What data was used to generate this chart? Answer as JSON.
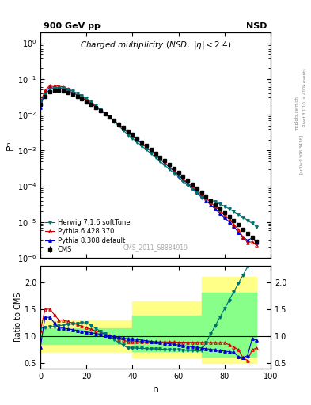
{
  "title": "Charged multiplicity",
  "title_detail": "(NSD, |η| < 2.4)",
  "top_left": "900 GeV pp",
  "top_right": "NSD",
  "right_label": "Rivet 3.1.10, ≥ 400k events",
  "arxiv_label": "[arXiv:1306.3436]",
  "mcplots_label": "mcplots.cern.ch",
  "watermark": "CMS_2011_S8884919",
  "ylabel_main": "Pⁿ",
  "ylabel_ratio": "Ratio to CMS",
  "xlabel": "n",
  "xlim": [
    0,
    100
  ],
  "ylim_ratio": [
    0.4,
    2.3
  ],
  "colors": {
    "cms": "#000000",
    "herwig": "#007070",
    "pythia6": "#cc0000",
    "pythia8": "#0000cc"
  },
  "band_yellow": "#ffff88",
  "band_green": "#88ff88",
  "legend_labels": [
    "CMS",
    "Herwig 7.1.6 softTune",
    "Pythia 6.428 370",
    "Pythia 8.308 default"
  ]
}
